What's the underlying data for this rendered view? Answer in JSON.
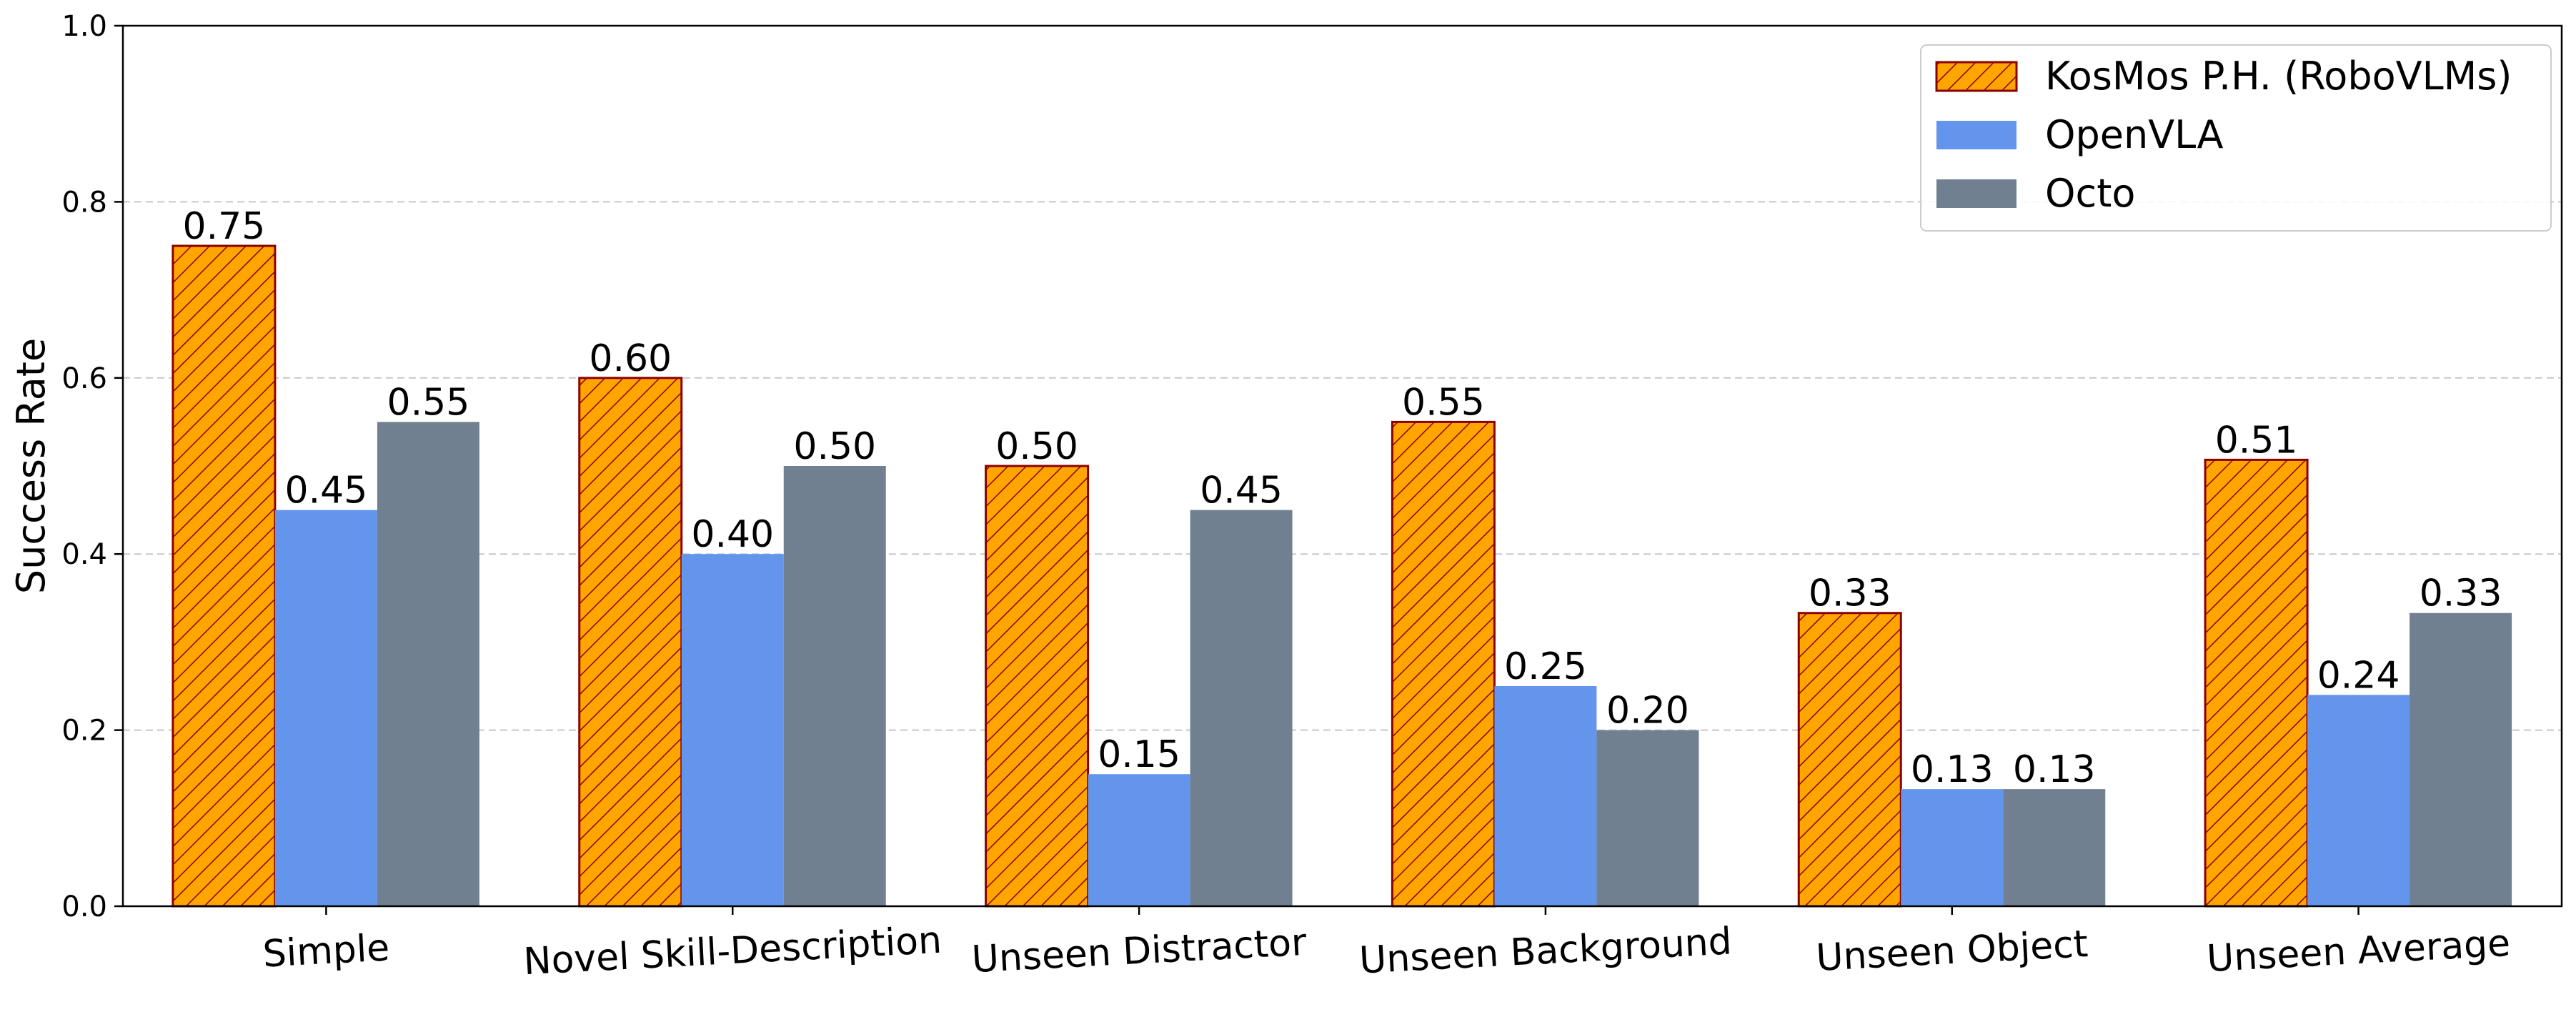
{
  "chart_data": {
    "type": "bar",
    "categories": [
      "Simple",
      "Novel Skill-Description",
      "Unseen Distractor",
      "Unseen Background",
      "Unseen Object",
      "Unseen Average"
    ],
    "series": [
      {
        "name": "KosMos P.H. (RoboVLMs)",
        "values": [
          0.75,
          0.6,
          0.5,
          0.55,
          0.333,
          0.507
        ],
        "labels": [
          "0.75",
          "0.60",
          "0.50",
          "0.55",
          "0.33",
          "0.51"
        ],
        "color": "#FFA500",
        "edge_color": "#8B0000",
        "hatch": "diagonal"
      },
      {
        "name": "OpenVLA",
        "values": [
          0.45,
          0.4,
          0.15,
          0.25,
          0.133,
          0.24
        ],
        "labels": [
          "0.45",
          "0.40",
          "0.15",
          "0.25",
          "0.13",
          "0.24"
        ],
        "color": "#6495ED"
      },
      {
        "name": "Octo",
        "values": [
          0.55,
          0.5,
          0.45,
          0.2,
          0.133,
          0.333
        ],
        "labels": [
          "0.55",
          "0.50",
          "0.45",
          "0.20",
          "0.13",
          "0.33"
        ],
        "color": "#708090"
      }
    ],
    "title": "",
    "xlabel": "",
    "ylabel": "Success Rate",
    "ylim": [
      0,
      1.0
    ],
    "yticks": [
      "0.0",
      "0.2",
      "0.4",
      "0.6",
      "0.8",
      "1.0"
    ],
    "grid": "y-dashed",
    "legend_position": "top-right"
  }
}
